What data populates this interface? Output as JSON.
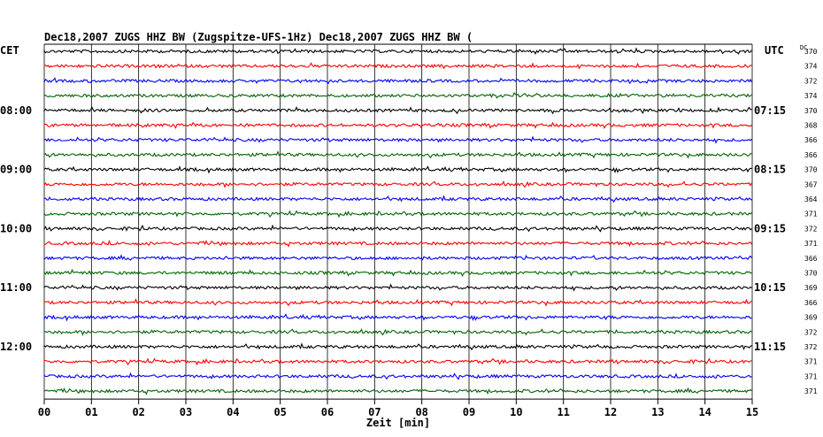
{
  "header": {
    "title": "Dec18,2007   ZUGS HHZ BW (Zugspitze-UFS-1Hz) Dec18,2007   ZUGS HHZ BW (",
    "left_timezone": "CET",
    "right_timezone": "UTC",
    "dc_label": "DC"
  },
  "chart_data": {
    "type": "line",
    "title": "Dec18,2007   ZUGS HHZ BW (Zugspitze-UFS-1Hz) Dec18,2007   ZUGS HHZ BW (",
    "xlabel": "Zeit [min]",
    "ylabel": "",
    "x_ticks": [
      "00",
      "01",
      "02",
      "03",
      "04",
      "05",
      "06",
      "07",
      "08",
      "09",
      "10",
      "11",
      "12",
      "13",
      "14",
      "15"
    ],
    "xlim": [
      0,
      15
    ],
    "grid": true,
    "left_time_labels": [
      {
        "row": 4,
        "label": "08:00"
      },
      {
        "row": 8,
        "label": "09:00"
      },
      {
        "row": 12,
        "label": "10:00"
      },
      {
        "row": 16,
        "label": "11:00"
      },
      {
        "row": 20,
        "label": "12:00"
      }
    ],
    "right_time_labels": [
      {
        "row": 4,
        "label": "07:15"
      },
      {
        "row": 8,
        "label": "08:15"
      },
      {
        "row": 12,
        "label": "09:15"
      },
      {
        "row": 16,
        "label": "10:15"
      },
      {
        "row": 20,
        "label": "11:15"
      }
    ],
    "trace_colors": [
      "#000000",
      "#ff0000",
      "#0000ff",
      "#006400"
    ],
    "dc_offsets": [
      370,
      374,
      372,
      374,
      370,
      368,
      366,
      366,
      370,
      367,
      364,
      371,
      372,
      371,
      366,
      370,
      369,
      366,
      369,
      372,
      372,
      371,
      371,
      371
    ]
  }
}
